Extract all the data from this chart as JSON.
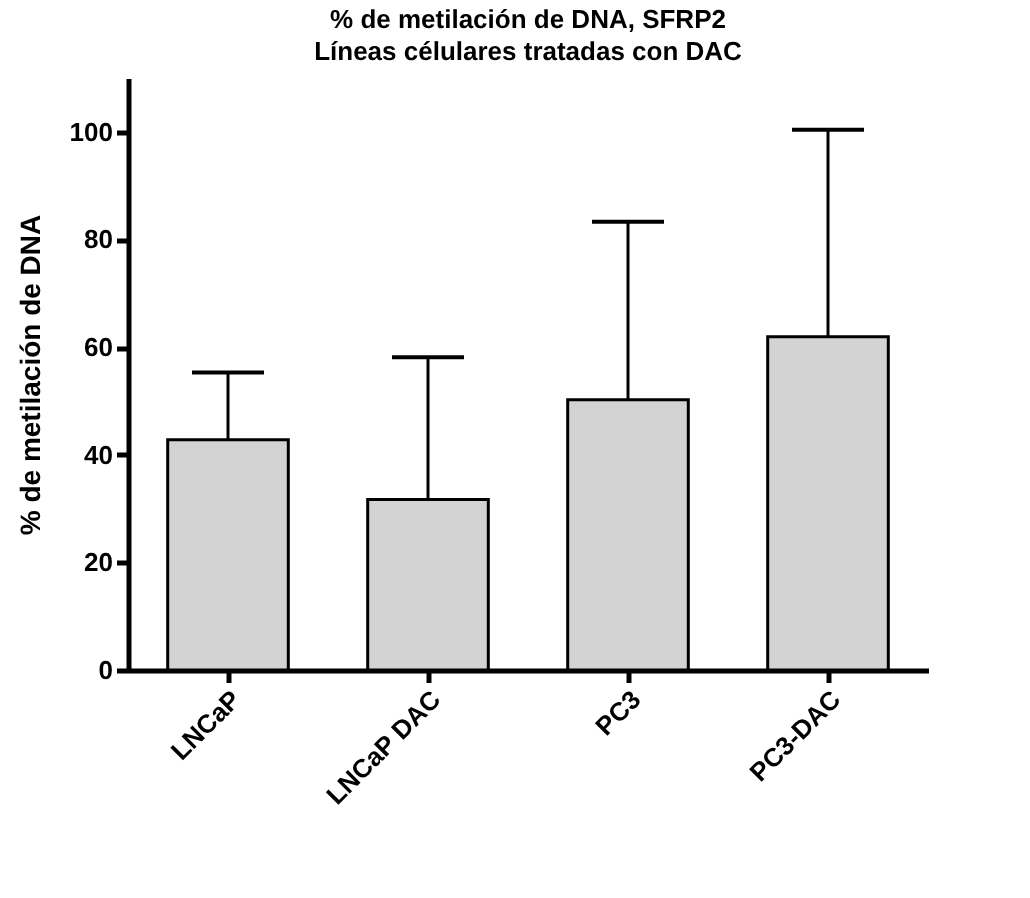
{
  "chart_data": {
    "type": "bar",
    "title": "% de metilación de DNA, SFRP2",
    "subtitle": "Líneas célulares tratadas con DAC",
    "ylabel": "% de metilación de DNA",
    "categories": [
      "LNCaP",
      "LNCaP DAC",
      "PC3",
      "PC3-DAC"
    ],
    "values": [
      42.8,
      31.7,
      50.2,
      61.9
    ],
    "errors": [
      [
        42.8,
        55.3
      ],
      [
        31.7,
        58.1
      ],
      [
        50.2,
        83.3
      ],
      [
        61.9,
        100.4
      ]
    ],
    "color": "#d3d3d3",
    "ylim": [
      0,
      110
    ],
    "yticks": [
      0,
      20,
      40,
      60,
      80,
      100
    ],
    "grid": false
  }
}
